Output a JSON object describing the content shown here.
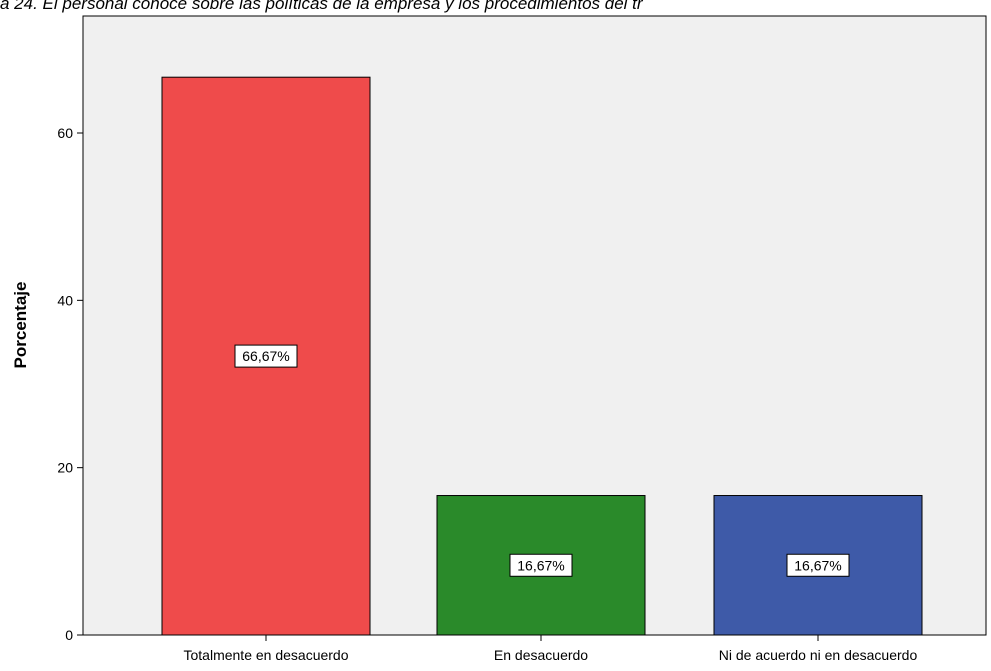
{
  "chart_data": {
    "type": "bar",
    "title": "a 24. El personal conoce sobre las políticas de la empresa y los procedimientos del tr",
    "xlabel": "",
    "ylabel": "Porcentaje",
    "ylim": [
      0,
      70
    ],
    "yticks": [
      0,
      20,
      40,
      60
    ],
    "grid": false,
    "categories": [
      "Totalmente en desacuerdo",
      "En desacuerdo",
      "Ni de acuerdo ni en desacuerdo"
    ],
    "values": [
      66.67,
      16.67,
      16.67
    ],
    "data_labels": [
      "66,67%",
      "16,67%",
      "16,67%"
    ],
    "colors": [
      "#ef4b4b",
      "#2a8a2a",
      "#3e5aa8"
    ],
    "plot_background": "#f0f0f0"
  }
}
